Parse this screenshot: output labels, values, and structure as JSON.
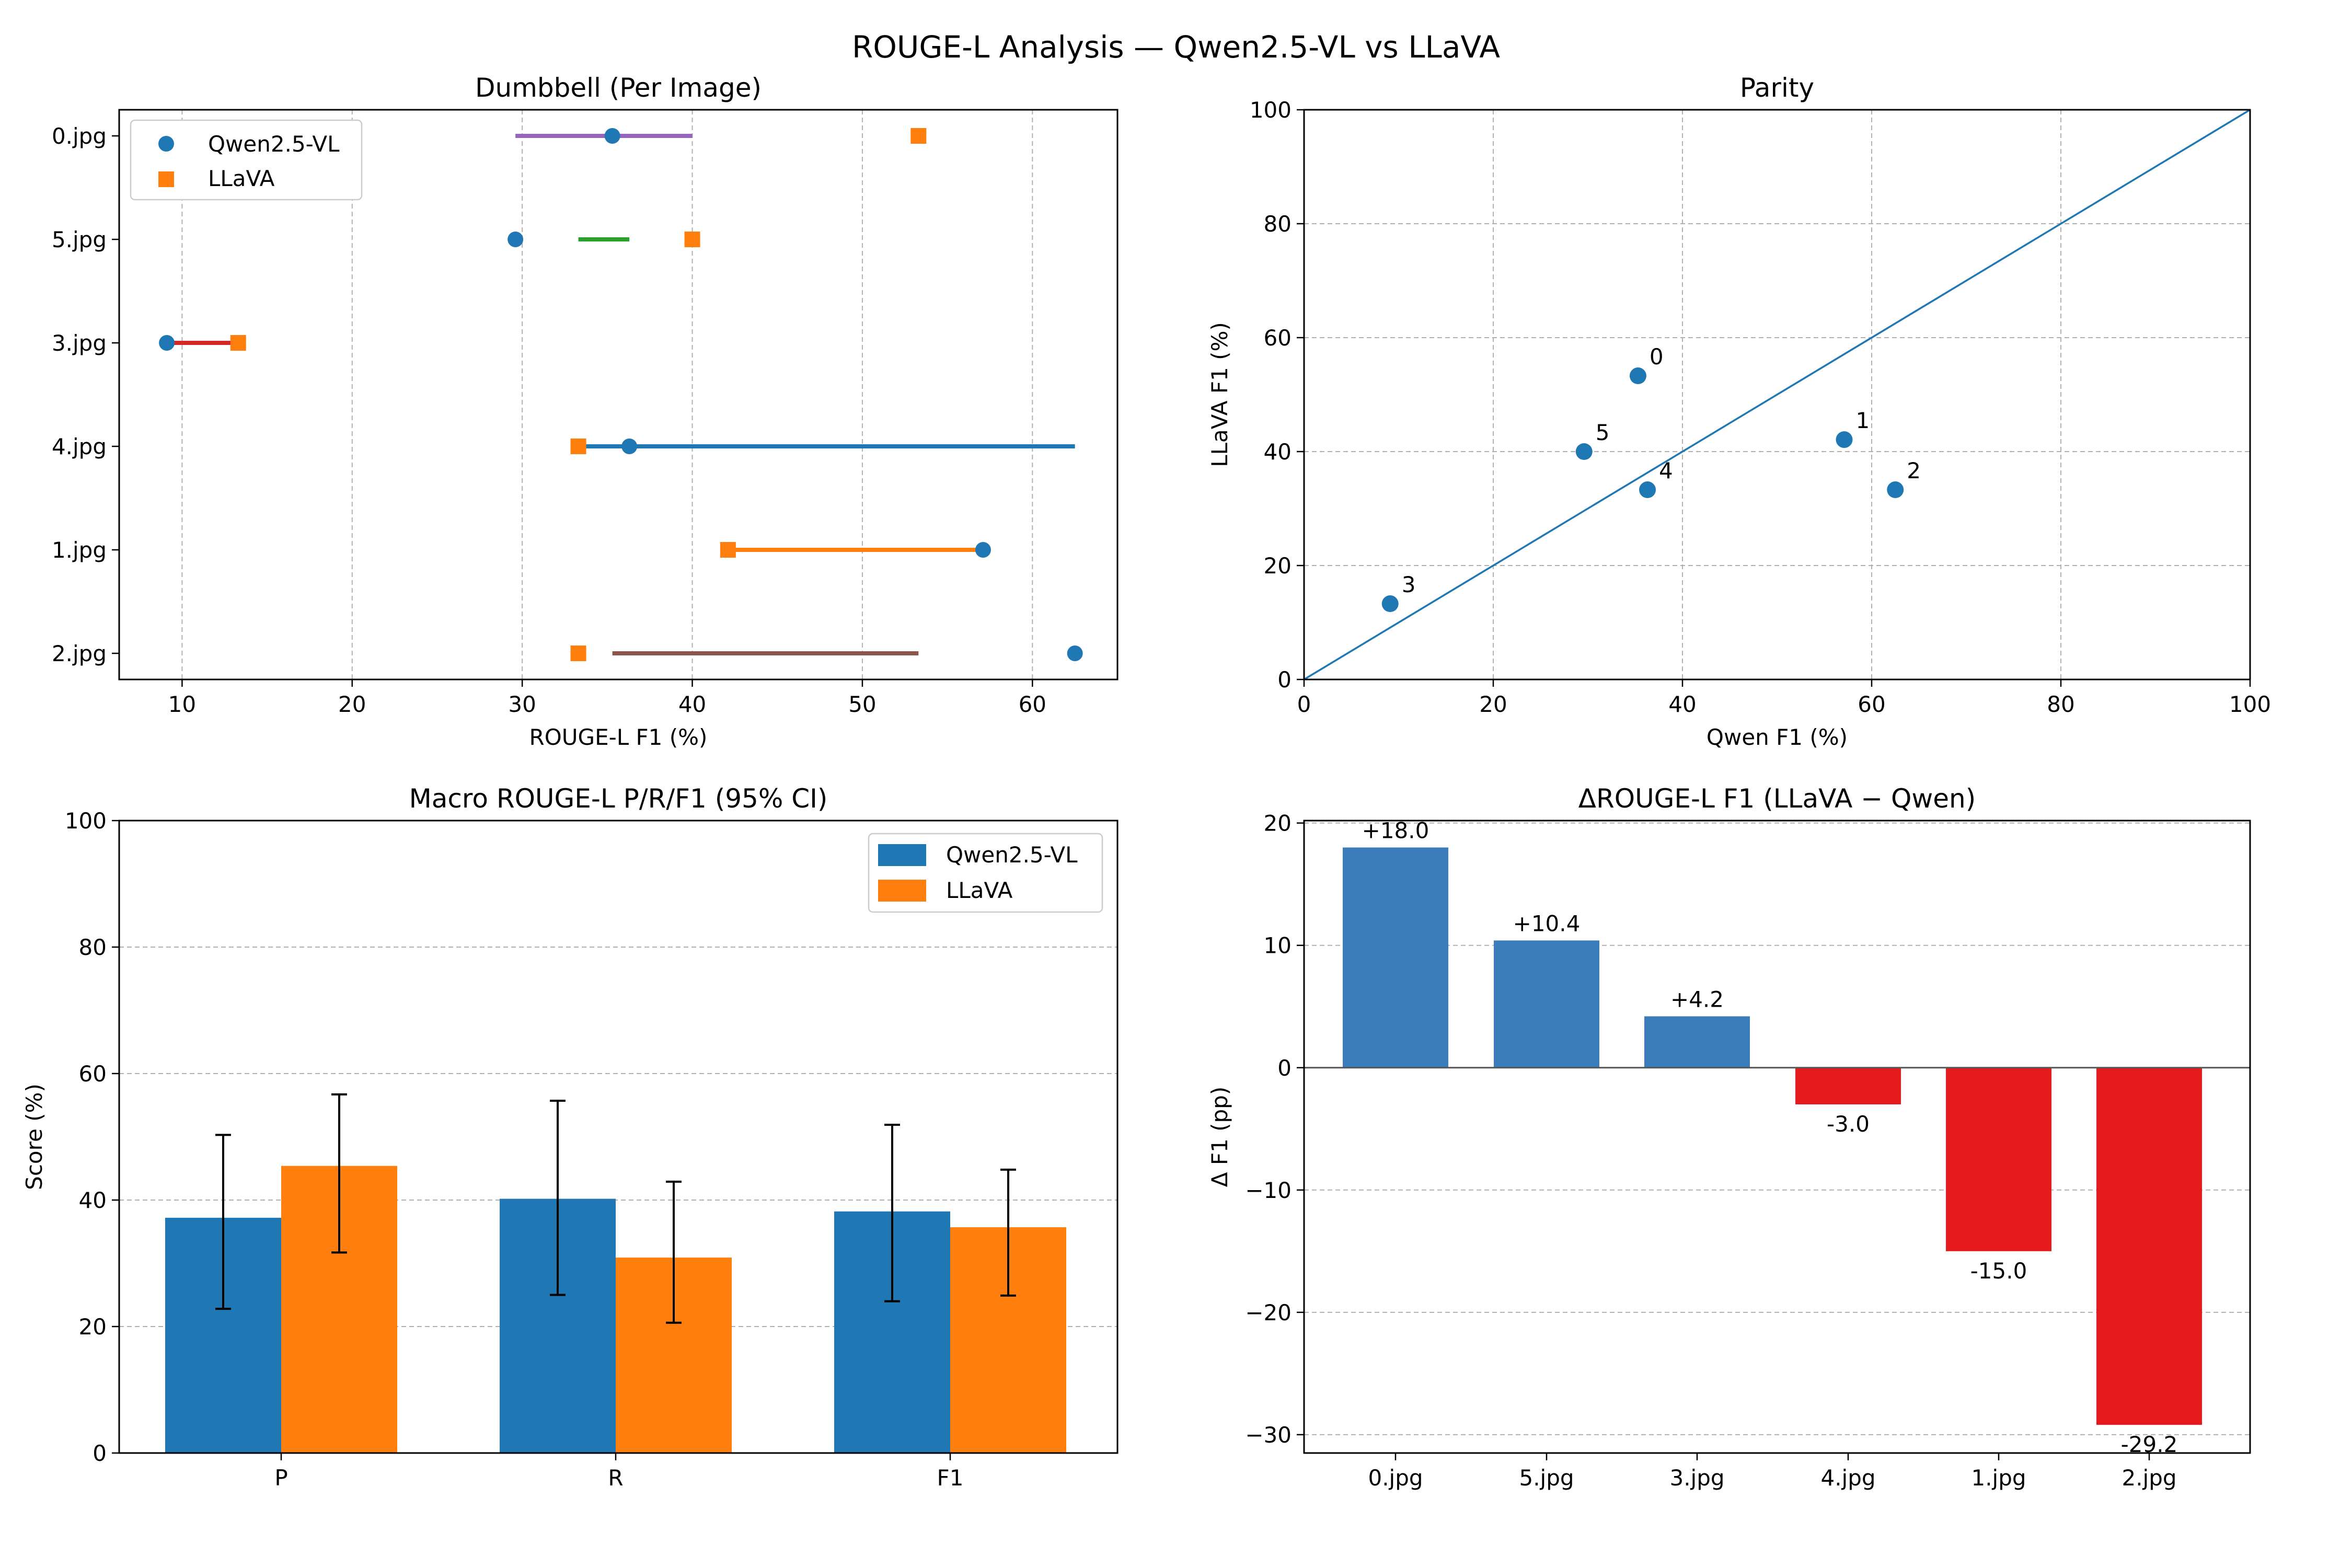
{
  "figure": {
    "title": "ROUGE-L Analysis — Qwen2.5-VL vs LLaVA"
  },
  "colors": {
    "qwen": "#1f77b4",
    "llava": "#ff7f0e",
    "delta_positive": "#3a7dba",
    "delta_negative": "#e41a1c",
    "identity_line": "#1f77b4"
  },
  "chart_data": [
    {
      "id": "dumbbell",
      "type": "scatter",
      "title": "Dumbbell (Per Image)",
      "xlabel": "ROUGE-L F1 (%)",
      "ylabel": "",
      "xlim": [
        6.3,
        65.0
      ],
      "xticks": [
        10,
        20,
        30,
        40,
        50,
        60
      ],
      "grid": "x",
      "legend": {
        "position": "top-left",
        "entries": [
          "Qwen2.5-VL",
          "LLaVA"
        ]
      },
      "categories": [
        "0.jpg",
        "5.jpg",
        "3.jpg",
        "4.jpg",
        "1.jpg",
        "2.jpg"
      ],
      "series": [
        {
          "name": "Qwen2.5-VL",
          "marker": "circle",
          "values": [
            35.3,
            29.6,
            9.1,
            36.3,
            57.1,
            62.5
          ]
        },
        {
          "name": "LLaVA",
          "marker": "square",
          "values": [
            53.3,
            40.0,
            13.3,
            33.3,
            42.1,
            33.3
          ]
        }
      ],
      "connectors": [
        {
          "category": "0.jpg",
          "from": 29.6,
          "to": 40.0,
          "color": "#9467bd"
        },
        {
          "category": "5.jpg",
          "from": 33.3,
          "to": 36.3,
          "color": "#2ca02c"
        },
        {
          "category": "3.jpg",
          "from": 9.1,
          "to": 13.3,
          "color": "#d62728"
        },
        {
          "category": "4.jpg",
          "from": 33.3,
          "to": 62.5,
          "color": "#1f77b4"
        },
        {
          "category": "1.jpg",
          "from": 42.1,
          "to": 57.1,
          "color": "#ff7f0e"
        },
        {
          "category": "2.jpg",
          "from": 35.3,
          "to": 53.3,
          "color": "#8c564b"
        }
      ]
    },
    {
      "id": "parity",
      "type": "scatter",
      "title": "Parity",
      "xlabel": "Qwen F1 (%)",
      "ylabel": "LLaVA F1 (%)",
      "xlim": [
        0,
        100
      ],
      "ylim": [
        0,
        100
      ],
      "xticks": [
        0,
        20,
        40,
        60,
        80,
        100
      ],
      "yticks": [
        0,
        20,
        40,
        60,
        80,
        100
      ],
      "grid": "both",
      "identity_line": true,
      "points": [
        {
          "label": "0",
          "x": 35.3,
          "y": 53.3
        },
        {
          "label": "5",
          "x": 29.6,
          "y": 40.0
        },
        {
          "label": "4",
          "x": 36.3,
          "y": 33.3
        },
        {
          "label": "3",
          "x": 9.1,
          "y": 13.3
        },
        {
          "label": "1",
          "x": 57.1,
          "y": 42.1
        },
        {
          "label": "2",
          "x": 62.5,
          "y": 33.3
        }
      ]
    },
    {
      "id": "macro",
      "type": "bar",
      "title": "Macro ROUGE-L P/R/F1 (95% CI)",
      "xlabel": "",
      "ylabel": "Score (%)",
      "ylim": [
        0,
        100
      ],
      "yticks": [
        0,
        20,
        40,
        60,
        80,
        100
      ],
      "grid": "y",
      "legend": {
        "position": "top-right",
        "entries": [
          "Qwen2.5-VL",
          "LLaVA"
        ]
      },
      "categories": [
        "P",
        "R",
        "F1"
      ],
      "series": [
        {
          "name": "Qwen2.5-VL",
          "values": [
            37.2,
            40.2,
            38.2
          ],
          "ci_low": [
            22.8,
            25.0,
            24.0
          ],
          "ci_high": [
            50.3,
            55.7,
            51.9
          ]
        },
        {
          "name": "LLaVA",
          "values": [
            45.4,
            30.9,
            35.7
          ],
          "ci_low": [
            31.7,
            20.6,
            24.9
          ],
          "ci_high": [
            56.7,
            42.9,
            44.8
          ]
        }
      ]
    },
    {
      "id": "delta",
      "type": "bar",
      "title": "ΔROUGE-L F1 (LLaVA − Qwen)",
      "xlabel": "",
      "ylabel": "Δ F1 (pp)",
      "ylim": [
        -31.5,
        20.2
      ],
      "yticks": [
        -30,
        -20,
        -10,
        0,
        10,
        20
      ],
      "ytick_labels": [
        "−30",
        "−20",
        "−10",
        "0",
        "10",
        "20"
      ],
      "grid": "y",
      "categories": [
        "0.jpg",
        "5.jpg",
        "3.jpg",
        "4.jpg",
        "1.jpg",
        "2.jpg"
      ],
      "values": [
        18.0,
        10.4,
        4.2,
        -3.0,
        -15.0,
        -29.2
      ],
      "data_labels": [
        "+18.0",
        "+10.4",
        "+4.2",
        "-3.0",
        "-15.0",
        "-29.2"
      ]
    }
  ]
}
